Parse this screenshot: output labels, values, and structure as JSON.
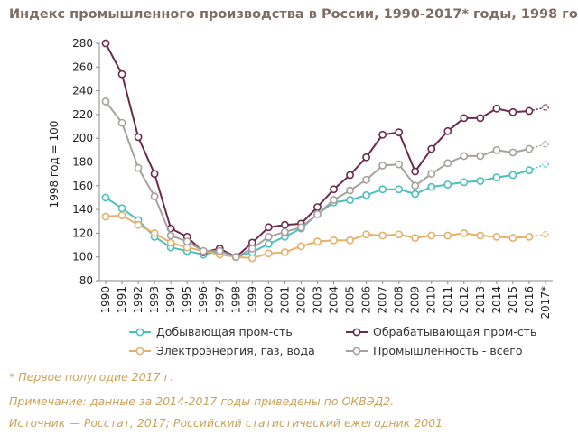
{
  "title": "Индекс промышленного производства в России, 1990-2017* годы, 1998 год = 100",
  "footnotes": [
    "* Первое полугодие 2017 г.",
    "Примечание: данные за 2014-2017 годы приведены по ОКВЭД2.",
    "Источник — Росстат, 2017; Российский статистический ежегодник 2001"
  ],
  "chart_data": {
    "type": "line",
    "title": "Индекс промышленного производства в России, 1990-2017* годы, 1998 год = 100",
    "ylabel": "1998 год = 100",
    "xlabel": "",
    "ylim": [
      80,
      280
    ],
    "yticks": [
      80,
      100,
      120,
      140,
      160,
      180,
      200,
      220,
      240,
      260,
      280
    ],
    "grid": false,
    "legend_position": "bottom",
    "x": [
      "1990",
      "1991",
      "1992",
      "1993",
      "1994",
      "1995",
      "1996",
      "1997",
      "1998",
      "1999",
      "2000",
      "2001",
      "2002",
      "2003",
      "2004",
      "2005",
      "2006",
      "2007",
      "2008",
      "2009",
      "2010",
      "2011",
      "2012",
      "2013",
      "2014",
      "2015",
      "2016",
      "2017*"
    ],
    "series": [
      {
        "name": "Добывающая пром-сть",
        "color": "#4bbfbf",
        "values": [
          150,
          141,
          131,
          117,
          108,
          105,
          102,
          105,
          100,
          104,
          111,
          117,
          124,
          136,
          146,
          148,
          152,
          157,
          157,
          153,
          159,
          161,
          163,
          164,
          167,
          169,
          173,
          178
        ]
      },
      {
        "name": "Обрабатывающая пром-сть",
        "color": "#6b2a4c",
        "values": [
          280,
          254,
          201,
          170,
          124,
          117,
          104,
          107,
          100,
          112,
          125,
          127,
          128,
          142,
          157,
          169,
          184,
          203,
          205,
          172,
          191,
          206,
          217,
          217,
          225,
          222,
          223,
          226
        ]
      },
      {
        "name": "Электроэнергия, газ, вода",
        "color": "#e5b06a",
        "values": [
          134,
          135,
          127,
          120,
          112,
          108,
          105,
          102,
          100,
          99,
          103,
          104,
          109,
          113,
          114,
          114,
          119,
          118,
          119,
          116,
          118,
          118,
          120,
          118,
          117,
          116,
          117,
          119
        ]
      },
      {
        "name": "Промышленность - всего",
        "color": "#a6a19c",
        "values": [
          231,
          213,
          175,
          151,
          118,
          113,
          105,
          105,
          100,
          107,
          117,
          121,
          125,
          136,
          148,
          156,
          165,
          177,
          178,
          160,
          170,
          179,
          185,
          185,
          190,
          188,
          191,
          195
        ]
      }
    ]
  }
}
